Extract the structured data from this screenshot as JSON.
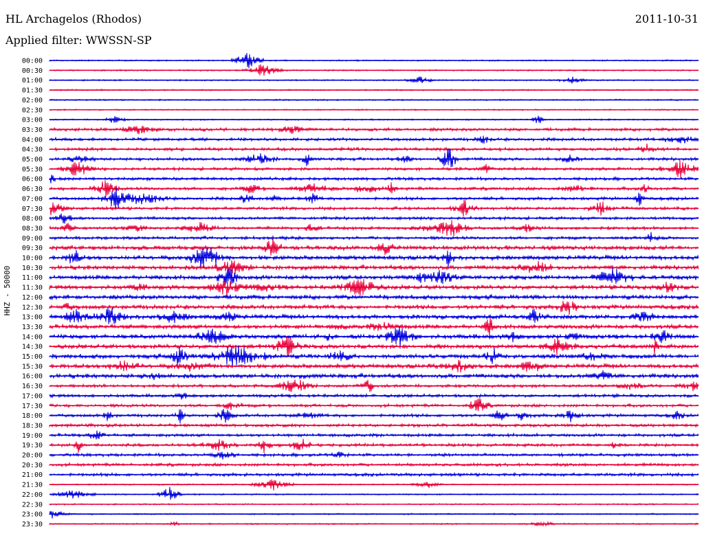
{
  "header": {
    "station": "HL Archagelos (Rhodos)",
    "date": "2011-10-31",
    "filter": "Applied filter: WWSSN-SP"
  },
  "axis": {
    "channel_label": "HHZ - 50000"
  },
  "colors": {
    "blue": "#0000dd",
    "red": "#e8003a"
  },
  "chart_data": {
    "type": "line",
    "title": "",
    "ylabel": "HHZ - 50000",
    "xlabel": "",
    "grid": false,
    "rows": [
      "00:00",
      "00:30",
      "01:00",
      "01:30",
      "02:00",
      "02:30",
      "03:00",
      "03:30",
      "04:00",
      "04:30",
      "05:00",
      "05:30",
      "06:00",
      "06:30",
      "07:00",
      "07:30",
      "08:00",
      "08:30",
      "09:00",
      "09:30",
      "10:00",
      "10:30",
      "11:00",
      "11:30",
      "12:00",
      "12:30",
      "13:00",
      "13:30",
      "14:00",
      "14:30",
      "15:00",
      "15:30",
      "16:00",
      "16:30",
      "17:00",
      "17:30",
      "18:00",
      "18:30",
      "19:00",
      "19:30",
      "20:00",
      "20:30",
      "21:00",
      "21:30",
      "22:00",
      "22:30",
      "23:00",
      "23:30"
    ],
    "row_color_pattern": [
      "blue",
      "red"
    ]
  }
}
